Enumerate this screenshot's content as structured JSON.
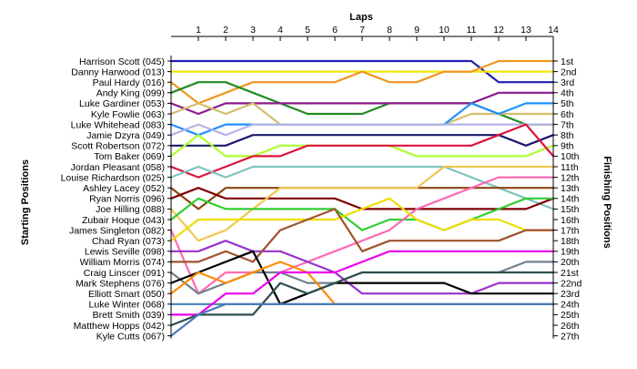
{
  "chart_data": {
    "type": "line",
    "title": "",
    "x_label": "Laps",
    "y_label_left": "Starting Positions",
    "y_label_right": "Finishing Positions",
    "x_ticks": [
      1,
      2,
      3,
      4,
      5,
      6,
      7,
      8,
      9,
      10,
      11,
      12,
      13,
      14
    ],
    "finish_labels": [
      "1st",
      "2nd",
      "3rd",
      "4th",
      "5th",
      "6th",
      "7th",
      "8th",
      "9th",
      "10th",
      "11th",
      "12th",
      "13th",
      "14th",
      "15th",
      "16th",
      "17th",
      "18th",
      "19th",
      "20th",
      "21st",
      "22nd",
      "23rd",
      "24th",
      "25th",
      "26th",
      "27th"
    ],
    "grid": false,
    "series": [
      {
        "name": "Harrison Scott (045)",
        "color": "#1f1fb4",
        "positions": [
          1,
          1,
          1,
          1,
          1,
          1,
          1,
          1,
          1,
          1,
          1,
          1,
          3,
          3,
          3
        ]
      },
      {
        "name": "Danny Harwood (013)",
        "color": "#f0e60a",
        "positions": [
          2,
          2,
          2,
          2,
          2,
          2,
          2,
          2,
          2,
          2,
          2,
          2,
          2,
          2,
          2
        ]
      },
      {
        "name": "Paul Hardy (016)",
        "color": "#f0961e",
        "positions": [
          3,
          5,
          4,
          3,
          3,
          3,
          3,
          2,
          3,
          3,
          2,
          2,
          1,
          1,
          1
        ]
      },
      {
        "name": "Andy King (099)",
        "color": "#228b22",
        "positions": [
          4,
          3,
          3,
          4,
          5,
          6,
          6,
          6,
          5,
          5,
          5,
          5,
          6,
          7,
          7
        ]
      },
      {
        "name": "Luke Gardiner (053)",
        "color": "#8b1a8b",
        "positions": [
          5,
          6,
          5,
          5,
          5,
          5,
          5,
          5,
          5,
          5,
          5,
          5,
          4,
          4,
          4
        ]
      },
      {
        "name": "Kyle Fowlie (063)",
        "color": "#d4be6a",
        "positions": [
          6,
          5,
          6,
          5,
          7,
          7,
          7,
          7,
          7,
          7,
          7,
          6,
          6,
          6,
          6
        ]
      },
      {
        "name": "Luke Whitehead (083)",
        "color": "#1e90ff",
        "positions": [
          7,
          8,
          7,
          7,
          7,
          7,
          7,
          7,
          7,
          7,
          7,
          5,
          6,
          5,
          5
        ]
      },
      {
        "name": "Jamie Dzyra (049)",
        "color": "#b4b4e6",
        "positions": [
          8,
          7,
          8,
          7,
          7,
          7,
          7,
          7,
          7,
          7,
          7,
          7,
          7,
          7,
          7
        ]
      },
      {
        "name": "Scott Robertson (072)",
        "color": "#1a1a6e",
        "positions": [
          9,
          9,
          9,
          8,
          8,
          8,
          8,
          8,
          8,
          8,
          8,
          8,
          8,
          9,
          8
        ]
      },
      {
        "name": "Tom Baker (069)",
        "color": "#adff2f",
        "positions": [
          10,
          8,
          10,
          10,
          9,
          9,
          9,
          9,
          9,
          10,
          10,
          10,
          10,
          10,
          9
        ]
      },
      {
        "name": "Jordan Pleasant (058)",
        "color": "#dc143c",
        "positions": [
          11,
          12,
          11,
          10,
          10,
          9,
          9,
          9,
          9,
          9,
          9,
          9,
          8,
          7,
          10
        ]
      },
      {
        "name": "Louise Richardson (025)",
        "color": "#7fc4bc",
        "positions": [
          12,
          11,
          12,
          11,
          11,
          11,
          11,
          11,
          11,
          11,
          11,
          12,
          13,
          14,
          15
        ]
      },
      {
        "name": "Ashley Lacey (052)",
        "color": "#8b4513",
        "positions": [
          13,
          15,
          13,
          13,
          13,
          13,
          13,
          13,
          13,
          13,
          13,
          13,
          13,
          13,
          13
        ]
      },
      {
        "name": "Ryan Norris (096)",
        "color": "#800000",
        "positions": [
          14,
          13,
          14,
          14,
          14,
          14,
          14,
          15,
          15,
          15,
          15,
          15,
          15,
          15,
          14
        ]
      },
      {
        "name": "Joe Hilling (088)",
        "color": "#f0c850",
        "positions": [
          15,
          18,
          17,
          15,
          13,
          13,
          13,
          13,
          13,
          13,
          11,
          11,
          11,
          11,
          11
        ]
      },
      {
        "name": "Zubair Hoque (043)",
        "color": "#32cd32",
        "positions": [
          16,
          14,
          15,
          15,
          15,
          15,
          15,
          17,
          16,
          16,
          17,
          16,
          15,
          14,
          14
        ]
      },
      {
        "name": "James Singleton (082)",
        "color": "#ff69b4",
        "positions": [
          17,
          23,
          21,
          21,
          21,
          20,
          19,
          18,
          17,
          15,
          14,
          13,
          12,
          12,
          12
        ]
      },
      {
        "name": "Chad Ryan (073)",
        "color": "#eedd00",
        "positions": [
          18,
          16,
          16,
          16,
          16,
          16,
          16,
          15,
          14,
          16,
          17,
          16,
          16,
          17,
          17
        ]
      },
      {
        "name": "Lewis Seville (098)",
        "color": "#9932cc",
        "positions": [
          19,
          19,
          18,
          19,
          19,
          20,
          21,
          23,
          23,
          23,
          23,
          23,
          22,
          22,
          22
        ]
      },
      {
        "name": "William Morris (074)",
        "color": "#a0522d",
        "positions": [
          20,
          20,
          19,
          20,
          17,
          16,
          15,
          19,
          18,
          18,
          18,
          18,
          18,
          17,
          17
        ]
      },
      {
        "name": "Craig Linscer (091)",
        "color": "#708090",
        "positions": [
          21,
          23,
          22,
          21,
          21,
          22,
          22,
          21,
          21,
          21,
          21,
          21,
          21,
          20,
          20
        ]
      },
      {
        "name": "Mark Stephens (076)",
        "color": "#000000",
        "positions": [
          22,
          21,
          20,
          19,
          24,
          23,
          22,
          22,
          22,
          22,
          22,
          23,
          23,
          23,
          23
        ]
      },
      {
        "name": "Elliott Smart (050)",
        "color": "#ff8c00",
        "positions": [
          23,
          21,
          22,
          21,
          20,
          21,
          24,
          24,
          24,
          24,
          24,
          24,
          24,
          24,
          24
        ]
      },
      {
        "name": "Luke Winter (068)",
        "color": "#4682b4",
        "positions": [
          24,
          24,
          24,
          24,
          24,
          24,
          24,
          24,
          24,
          24,
          24,
          24,
          24,
          24,
          24
        ]
      },
      {
        "name": "Brett Smith (039)",
        "color": "#ee00ee",
        "positions": [
          25,
          25,
          23,
          23,
          21,
          21,
          21,
          20,
          19,
          19,
          19,
          19,
          19,
          19,
          19
        ]
      },
      {
        "name": "Matthew Hopps (042)",
        "color": "#2f4f4f",
        "positions": [
          26,
          25,
          25,
          25,
          22,
          23,
          22,
          21,
          21,
          21,
          21,
          21,
          21,
          21,
          21
        ]
      },
      {
        "name": "Kyle Cutts (067)",
        "color": "#4a7ab8",
        "positions": [
          27,
          25,
          24,
          24,
          24,
          24,
          24,
          24,
          24,
          24,
          24,
          24,
          24,
          24,
          24
        ]
      }
    ]
  }
}
